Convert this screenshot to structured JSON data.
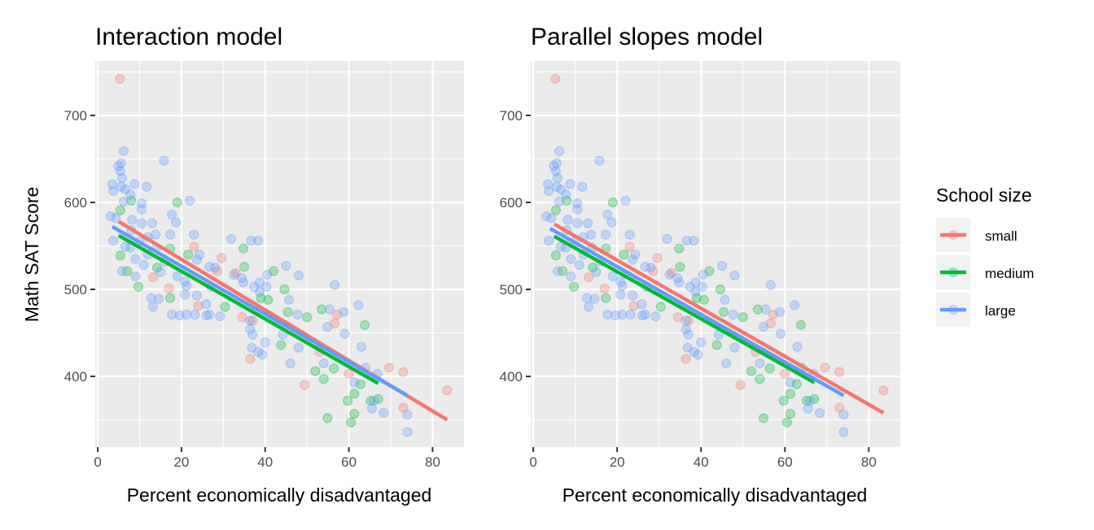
{
  "chart_data": [
    {
      "type": "scatter",
      "title": "Interaction model",
      "xlabel": "Percent economically disadvantaged",
      "ylabel": "Math SAT Score",
      "xlim": [
        -0.6,
        87.5
      ],
      "ylim": [
        318.7,
        762.6
      ],
      "xticks": [
        0,
        20,
        40,
        60,
        80
      ],
      "yticks": [
        400,
        500,
        600,
        700
      ],
      "grid": true,
      "lines": [
        {
          "name": "small",
          "x": [
            5,
            83.5
          ],
          "y": [
            578,
            350
          ]
        },
        {
          "name": "medium",
          "x": [
            5,
            67
          ],
          "y": [
            562,
            392
          ]
        },
        {
          "name": "large",
          "x": [
            3.5,
            74
          ],
          "y": [
            572,
            378
          ]
        }
      ]
    },
    {
      "type": "scatter",
      "title": "Parallel slopes model",
      "xlabel": "Percent economically disadvantaged",
      "ylabel": "",
      "xlim": [
        -0.6,
        87.5
      ],
      "ylim": [
        318.7,
        762.6
      ],
      "xticks": [
        0,
        20,
        40,
        60,
        80
      ],
      "yticks": [
        400,
        500,
        600,
        700
      ],
      "grid": true,
      "lines": [
        {
          "name": "small",
          "x": [
            5,
            83.5
          ],
          "y": [
            575,
            358
          ]
        },
        {
          "name": "medium",
          "x": [
            5,
            67
          ],
          "y": [
            561,
            393
          ]
        },
        {
          "name": "large",
          "x": [
            4,
            74
          ],
          "y": [
            570,
            378
          ]
        }
      ]
    }
  ],
  "points": {
    "small": [
      [
        5.3,
        742
      ],
      [
        23,
        549
      ],
      [
        29.6,
        536
      ],
      [
        33,
        519
      ],
      [
        28.6,
        521
      ],
      [
        24,
        481
      ],
      [
        13.2,
        514
      ],
      [
        17,
        501
      ],
      [
        34.5,
        468
      ],
      [
        37,
        464
      ],
      [
        57.2,
        471
      ],
      [
        56.6,
        461
      ],
      [
        36.4,
        420
      ],
      [
        49.4,
        390
      ],
      [
        69.6,
        410
      ],
      [
        73,
        405
      ],
      [
        83.5,
        384
      ],
      [
        73,
        364
      ],
      [
        60,
        403
      ],
      [
        53,
        428
      ]
    ],
    "medium": [
      [
        5.4,
        591
      ],
      [
        8,
        602
      ],
      [
        19,
        600
      ],
      [
        5.4,
        539
      ],
      [
        7,
        521
      ],
      [
        9.7,
        503
      ],
      [
        34.8,
        547
      ],
      [
        35,
        526
      ],
      [
        21.6,
        540
      ],
      [
        17.3,
        547
      ],
      [
        14.2,
        525
      ],
      [
        17.3,
        490
      ],
      [
        42,
        521
      ],
      [
        30.4,
        480
      ],
      [
        44.6,
        500
      ],
      [
        45.4,
        474
      ],
      [
        50,
        468
      ],
      [
        53.5,
        477
      ],
      [
        63.8,
        459
      ],
      [
        43.8,
        436
      ],
      [
        52,
        406
      ],
      [
        54,
        397
      ],
      [
        56.4,
        409
      ],
      [
        62.8,
        391
      ],
      [
        61.3,
        380
      ],
      [
        59.7,
        372
      ],
      [
        65.2,
        372
      ],
      [
        67,
        374
      ],
      [
        61.3,
        357
      ],
      [
        54.9,
        352
      ],
      [
        60.5,
        347
      ],
      [
        39,
        490
      ],
      [
        40.7,
        488
      ]
    ],
    "large": [
      [
        6.2,
        659
      ],
      [
        15.8,
        648
      ],
      [
        5.6,
        645
      ],
      [
        4.9,
        642
      ],
      [
        5.4,
        636
      ],
      [
        5.8,
        628
      ],
      [
        3.5,
        621
      ],
      [
        3.7,
        613
      ],
      [
        5.6,
        618
      ],
      [
        6.6,
        615
      ],
      [
        8.8,
        621
      ],
      [
        11.7,
        618
      ],
      [
        7.8,
        609
      ],
      [
        6.2,
        601
      ],
      [
        10.5,
        599
      ],
      [
        10.5,
        592
      ],
      [
        22,
        602
      ],
      [
        3.1,
        584
      ],
      [
        4.3,
        582
      ],
      [
        8.2,
        580
      ],
      [
        10.5,
        576
      ],
      [
        13,
        576
      ],
      [
        17.7,
        586
      ],
      [
        18.7,
        577
      ],
      [
        13.8,
        563
      ],
      [
        17.3,
        563
      ],
      [
        23,
        563
      ],
      [
        3.7,
        556
      ],
      [
        6.6,
        549
      ],
      [
        7.8,
        548
      ],
      [
        24.3,
        540
      ],
      [
        23.7,
        534
      ],
      [
        5.8,
        521
      ],
      [
        9,
        515
      ],
      [
        12.8,
        490
      ],
      [
        14.6,
        489
      ],
      [
        13.2,
        480
      ],
      [
        20.8,
        494
      ],
      [
        23.7,
        493
      ],
      [
        25.9,
        483
      ],
      [
        17.7,
        471
      ],
      [
        19.6,
        470
      ],
      [
        21.2,
        471
      ],
      [
        23.2,
        471
      ],
      [
        26,
        470
      ],
      [
        29.2,
        469
      ],
      [
        31.9,
        558
      ],
      [
        36.6,
        556
      ],
      [
        38.3,
        556
      ],
      [
        26.7,
        526
      ],
      [
        28,
        525
      ],
      [
        32.5,
        517
      ],
      [
        34.4,
        513
      ],
      [
        38.7,
        508
      ],
      [
        40.5,
        517
      ],
      [
        37.4,
        503
      ],
      [
        40.3,
        503
      ],
      [
        38.7,
        497
      ],
      [
        21.2,
        504
      ],
      [
        27,
        503
      ],
      [
        34.8,
        508
      ],
      [
        20.8,
        509
      ],
      [
        26.7,
        471
      ],
      [
        36.4,
        464
      ],
      [
        45,
        527
      ],
      [
        48,
        516
      ],
      [
        56.6,
        505
      ],
      [
        45.7,
        488
      ],
      [
        47.7,
        471
      ],
      [
        55.4,
        477
      ],
      [
        58.8,
        474
      ],
      [
        62.3,
        482
      ],
      [
        54.9,
        457
      ],
      [
        59,
        449
      ],
      [
        63,
        434
      ],
      [
        44.2,
        448
      ],
      [
        48,
        433
      ],
      [
        40,
        439
      ],
      [
        36.8,
        433
      ],
      [
        38.3,
        428
      ],
      [
        39.3,
        425
      ],
      [
        46,
        415
      ],
      [
        54,
        415
      ],
      [
        36.4,
        454
      ],
      [
        37,
        448
      ],
      [
        61.3,
        393
      ],
      [
        66.8,
        403
      ],
      [
        65.5,
        363
      ],
      [
        68.3,
        358
      ],
      [
        74,
        356
      ],
      [
        74,
        336
      ],
      [
        64,
        410
      ],
      [
        66,
        372
      ],
      [
        9,
        535
      ],
      [
        11,
        528
      ],
      [
        12,
        540
      ],
      [
        15,
        520
      ],
      [
        16,
        532
      ],
      [
        19,
        515
      ],
      [
        10,
        555
      ],
      [
        14,
        548
      ],
      [
        8,
        568
      ],
      [
        12,
        560
      ]
    ]
  },
  "legend": {
    "title": "School size",
    "placement": "right",
    "items": [
      "small",
      "medium",
      "large"
    ]
  },
  "colors": {
    "small": "#F8766D",
    "medium": "#00BA38",
    "large": "#619CFF",
    "panel": "#EBEBEB",
    "grid": "#FFFFFF"
  }
}
